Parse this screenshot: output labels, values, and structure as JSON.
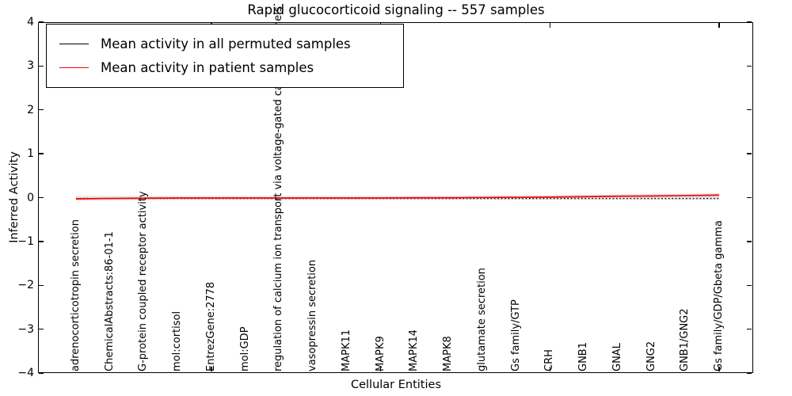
{
  "title": "Rapid glucocorticoid signaling -- 557 samples",
  "axes": {
    "ylabel": "Inferred Activity",
    "xlabel": "Cellular Entities",
    "y_tick_labels": [
      "4",
      "3",
      "2",
      "1",
      "0",
      "−1",
      "−2",
      "−3",
      "−4"
    ],
    "x_tick_mark_indices": [
      4,
      9,
      14,
      19
    ]
  },
  "legend": {
    "entries": [
      {
        "label": "Mean activity in all permuted samples",
        "color": "#000000"
      },
      {
        "label": "Mean activity in patient samples",
        "color": "#ff0000"
      }
    ],
    "position": "upper left"
  },
  "colors": {
    "permuted_line": "#000000",
    "patient_line": "#ff0000",
    "permuted_band": "#dcdcdc",
    "spine": "#000000",
    "background": "#ffffff"
  },
  "chart_data": {
    "type": "line",
    "title": "Rapid glucocorticoid signaling -- 557 samples",
    "xlabel": "Cellular Entities",
    "ylabel": "Inferred Activity",
    "ylim": [
      -4,
      4
    ],
    "grid": false,
    "legend_position": "upper left",
    "categories": [
      "adrenocorticotropin secretion",
      "ChemicalAbstracts:86-01-1",
      "G-protein coupled receptor activity",
      "mol:cortisol",
      "EntrezGene:2778",
      "mol:GDP",
      "regulation of calcium ion transport via voltage-gated calcium channels",
      "vasopressin secretion",
      "MAPK11",
      "MAPK9",
      "MAPK14",
      "MAPK8",
      "glutamate secretion",
      "Gs family/GTP",
      "CRH",
      "GNB1",
      "GNAL",
      "GNG2",
      "GNB1/GNG2",
      "Gs family/GDP/Gbeta gamma"
    ],
    "series": [
      {
        "name": "Mean activity in all permuted samples",
        "color": "#000000",
        "style": "dotted",
        "values": [
          0,
          0,
          0,
          0,
          0,
          0,
          0,
          0,
          0,
          0,
          0,
          0,
          0,
          0,
          0,
          0,
          0,
          0,
          0,
          0
        ]
      },
      {
        "name": "Mean activity in patient samples",
        "color": "#ff0000",
        "style": "solid",
        "values": [
          -0.02,
          -0.01,
          -0.005,
          0,
          0,
          0,
          0,
          0,
          0,
          0,
          0.005,
          0.005,
          0.01,
          0.015,
          0.02,
          0.03,
          0.04,
          0.045,
          0.055,
          0.065
        ]
      }
    ],
    "permuted_band_halfwidth": 0.045
  }
}
